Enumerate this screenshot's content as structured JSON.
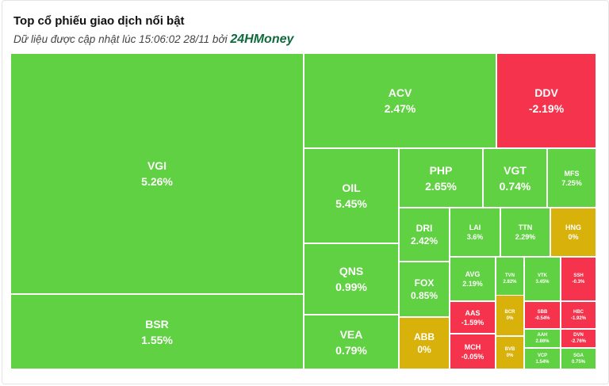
{
  "header": {
    "title": "Top cổ phiếu giao dịch nổi bật",
    "subtitle_prefix": "Dữ liệu được cập nhật lúc 15:06:02 28/11 bởi",
    "brand": "24HMoney"
  },
  "colors": {
    "up": "#60d142",
    "down": "#f6334d",
    "flat": "#d8b20b"
  },
  "tiles": [
    {
      "symbol": "VGI",
      "change": "5.26%",
      "trend": "up"
    },
    {
      "symbol": "BSR",
      "change": "1.55%",
      "trend": "up"
    },
    {
      "symbol": "ACV",
      "change": "2.47%",
      "trend": "up"
    },
    {
      "symbol": "DDV",
      "change": "-2.19%",
      "trend": "down"
    },
    {
      "symbol": "OIL",
      "change": "5.45%",
      "trend": "up"
    },
    {
      "symbol": "QNS",
      "change": "0.99%",
      "trend": "up"
    },
    {
      "symbol": "VEA",
      "change": "0.79%",
      "trend": "up"
    },
    {
      "symbol": "PHP",
      "change": "2.65%",
      "trend": "up"
    },
    {
      "symbol": "VGT",
      "change": "0.74%",
      "trend": "up"
    },
    {
      "symbol": "MFS",
      "change": "7.25%",
      "trend": "up"
    },
    {
      "symbol": "DRI",
      "change": "2.42%",
      "trend": "up"
    },
    {
      "symbol": "LAI",
      "change": "3.6%",
      "trend": "up"
    },
    {
      "symbol": "TTN",
      "change": "2.29%",
      "trend": "up"
    },
    {
      "symbol": "HNG",
      "change": "0%",
      "trend": "flat"
    },
    {
      "symbol": "FOX",
      "change": "0.85%",
      "trend": "up"
    },
    {
      "symbol": "AVG",
      "change": "2.19%",
      "trend": "up"
    },
    {
      "symbol": "TVN",
      "change": "2.82%",
      "trend": "up"
    },
    {
      "symbol": "VTK",
      "change": "3.45%",
      "trend": "up"
    },
    {
      "symbol": "SSH",
      "change": "-0.3%",
      "trend": "down"
    },
    {
      "symbol": "ABB",
      "change": "0%",
      "trend": "flat"
    },
    {
      "symbol": "AAS",
      "change": "-1.59%",
      "trend": "down"
    },
    {
      "symbol": "BCR",
      "change": "0%",
      "trend": "flat"
    },
    {
      "symbol": "SBB",
      "change": "-0.54%",
      "trend": "down"
    },
    {
      "symbol": "HBC",
      "change": "-1.92%",
      "trend": "down"
    },
    {
      "symbol": "AAH",
      "change": "2.86%",
      "trend": "up"
    },
    {
      "symbol": "DVN",
      "change": "-2.76%",
      "trend": "down"
    },
    {
      "symbol": "MCH",
      "change": "-0.05%",
      "trend": "down"
    },
    {
      "symbol": "BVB",
      "change": "0%",
      "trend": "flat"
    },
    {
      "symbol": "VCP",
      "change": "1.54%",
      "trend": "up"
    },
    {
      "symbol": "SGA",
      "change": "0.75%",
      "trend": "up"
    }
  ]
}
